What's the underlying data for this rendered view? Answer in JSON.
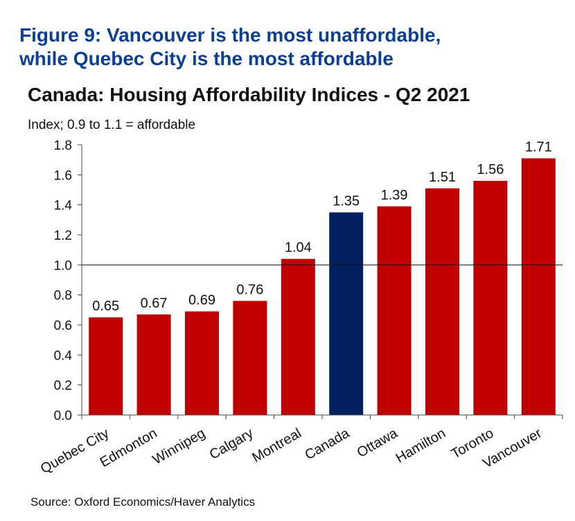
{
  "figure": {
    "title_line1": "Figure 9: Vancouver is the most unaffordable,",
    "title_line2": "while Quebec City is the most affordable"
  },
  "source": "Source: Oxford Economics/Haver Analytics",
  "colors": {
    "bar_default": "#c00000",
    "bar_highlight": "#002060",
    "figure_title": "#0d3f8f"
  },
  "chart_data": {
    "type": "bar",
    "title": "Canada: Housing Affordability Indices - Q2 2021",
    "subtitle": "Index; 0.9 to 1.1 = affordable",
    "categories": [
      "Quebec City",
      "Edmonton",
      "Winnipeg",
      "Calgary",
      "Montreal",
      "Canada",
      "Ottawa",
      "Hamilton",
      "Toronto",
      "Vancouver"
    ],
    "values": [
      0.65,
      0.67,
      0.69,
      0.76,
      1.04,
      1.35,
      1.39,
      1.51,
      1.56,
      1.71
    ],
    "data_labels": [
      "0.65",
      "0.67",
      "0.69",
      "0.76",
      "1.04",
      "1.35",
      "1.39",
      "1.51",
      "1.56",
      "1.71"
    ],
    "highlight_category": "Canada",
    "ylim": [
      0,
      1.8
    ],
    "yticks": [
      "0.0",
      "0.2",
      "0.4",
      "0.6",
      "0.8",
      "1.0",
      "1.2",
      "1.4",
      "1.6",
      "1.8"
    ],
    "reference_line": 1.0,
    "xlabel": "",
    "ylabel": "",
    "grid": false,
    "legend": "none"
  }
}
